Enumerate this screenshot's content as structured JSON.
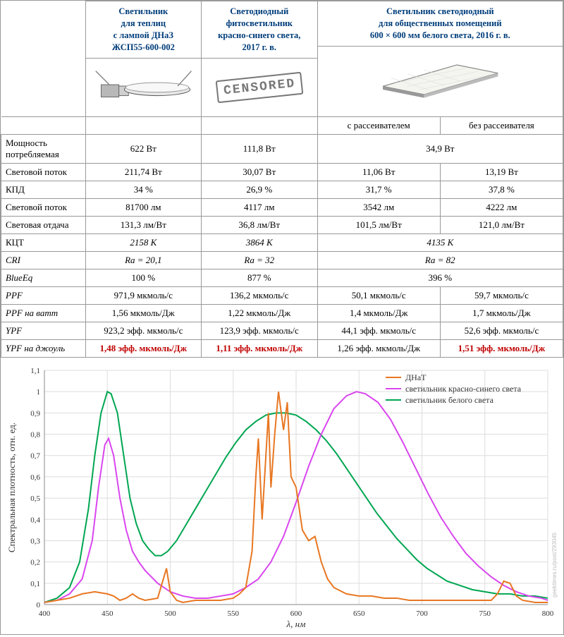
{
  "headers": {
    "col1": "Светильник\nдля теплиц\nс лампой ДНаЗ\nЖСП55-600-002",
    "col2": "Светодиодный\nфитосветильник\nкрасно-синего света,\n2017 г. в.",
    "col3": "Светильник светодиодный\nдля общественных помещений\n600 × 600 мм белого света, 2016 г. в.",
    "sub3a": "с рассеивателем",
    "sub3b": "без рассеивателя"
  },
  "censored_text": "CENSORED",
  "rows": [
    {
      "label": "Мощность потребляемая",
      "italic": false,
      "cells": [
        "622 Вт",
        "111,8 Вт",
        {
          "span": 2,
          "v": "34,9 Вт"
        }
      ]
    },
    {
      "label": "Световой поток",
      "italic": false,
      "cells": [
        "211,74 Вт",
        "30,07 Вт",
        "11,06 Вт",
        "13,19 Вт"
      ]
    },
    {
      "label": "КПД",
      "italic": false,
      "cells": [
        "34 %",
        "26,9 %",
        "31,7 %",
        "37,8 %"
      ]
    },
    {
      "label": "Световой поток",
      "italic": false,
      "cells": [
        "81700 лм",
        "4117 лм",
        "3542 лм",
        "4222 лм"
      ]
    },
    {
      "label": "Световая отдача",
      "italic": false,
      "cells": [
        "131,3 лм/Вт",
        "36,8 лм/Вт",
        "101,5 лм/Вт",
        "121,0 лм/Вт"
      ]
    },
    {
      "label": "КЦТ",
      "italic": false,
      "cells": [
        "2158 K",
        "3864 K",
        {
          "span": 2,
          "v": "4135 K"
        }
      ],
      "cell_italic": true
    },
    {
      "label": "CRI",
      "italic": true,
      "cells": [
        "Ra = 20,1",
        "Ra = 32",
        {
          "span": 2,
          "v": "Ra = 82"
        }
      ],
      "cell_italic": true
    },
    {
      "label": "BlueEq",
      "italic": true,
      "cells": [
        "100 %",
        "877 %",
        {
          "span": 2,
          "v": "396 %"
        }
      ]
    },
    {
      "label": "PPF",
      "italic": true,
      "cells": [
        "971,9 мкмоль/с",
        "136,2 мкмоль/с",
        "50,1 мкмоль/с",
        "59,7 мкмоль/с"
      ]
    },
    {
      "label": "PPF на ватт",
      "italic": true,
      "cells": [
        "1,56 мкмоль/Дж",
        "1,22 мкмоль/Дж",
        "1,4 мкмоль/Дж",
        "1,7 мкмоль/Дж"
      ]
    },
    {
      "label": "YPF",
      "italic": true,
      "cells": [
        "923,2 эфф. мкмоль/с",
        "123,9 эфф. мкмоль/с",
        "44,1 эфф. мкмоль/с",
        "52,6 эфф. мкмоль/с"
      ]
    },
    {
      "label": "YPF на джоуль",
      "italic": true,
      "cells": [
        {
          "v": "1,48 эфф. мкмоль/Дж",
          "red": true
        },
        {
          "v": "1,11 эфф. мкмоль/Дж",
          "red": true
        },
        "1,26 эфф. мкмоль/Дж",
        {
          "v": "1,51 эфф. мкмоль/Дж",
          "red": true
        }
      ]
    }
  ],
  "chart": {
    "type": "line",
    "xlim": [
      400,
      800
    ],
    "ylim": [
      0,
      1.1
    ],
    "xtick_step": 50,
    "ytick_step": 0.1,
    "xlabel": "λ, нм",
    "ylabel": "Спектральная плотность, отн. ед.",
    "background_color": "#ffffff",
    "grid_color": "#dddddd",
    "axis_color": "#888888",
    "label_fontsize": 13,
    "tick_fontsize": 11,
    "line_width": 2,
    "legend": {
      "position": "top-right",
      "items": [
        {
          "label": "ДНаТ",
          "color": "#e87722"
        },
        {
          "label": "светильник красно-синего света",
          "color": "#d946ef"
        },
        {
          "label": "светильник белого света",
          "color": "#00a651"
        }
      ]
    },
    "credit": "geektimes.ru/post/293045",
    "series": {
      "dnat": {
        "color": "#e87722",
        "points": [
          [
            400,
            0.01
          ],
          [
            410,
            0.02
          ],
          [
            420,
            0.03
          ],
          [
            430,
            0.05
          ],
          [
            440,
            0.06
          ],
          [
            450,
            0.05
          ],
          [
            455,
            0.04
          ],
          [
            460,
            0.02
          ],
          [
            465,
            0.03
          ],
          [
            470,
            0.05
          ],
          [
            475,
            0.03
          ],
          [
            480,
            0.02
          ],
          [
            490,
            0.03
          ],
          [
            497,
            0.17
          ],
          [
            500,
            0.06
          ],
          [
            505,
            0.02
          ],
          [
            510,
            0.01
          ],
          [
            520,
            0.02
          ],
          [
            530,
            0.02
          ],
          [
            540,
            0.02
          ],
          [
            550,
            0.03
          ],
          [
            555,
            0.05
          ],
          [
            560,
            0.08
          ],
          [
            565,
            0.25
          ],
          [
            568,
            0.6
          ],
          [
            570,
            0.78
          ],
          [
            573,
            0.4
          ],
          [
            576,
            0.7
          ],
          [
            578,
            0.9
          ],
          [
            580,
            0.55
          ],
          [
            583,
            0.8
          ],
          [
            586,
            1.0
          ],
          [
            590,
            0.82
          ],
          [
            593,
            0.95
          ],
          [
            596,
            0.6
          ],
          [
            600,
            0.55
          ],
          [
            605,
            0.35
          ],
          [
            610,
            0.3
          ],
          [
            615,
            0.32
          ],
          [
            620,
            0.2
          ],
          [
            625,
            0.12
          ],
          [
            630,
            0.08
          ],
          [
            640,
            0.05
          ],
          [
            650,
            0.04
          ],
          [
            660,
            0.04
          ],
          [
            670,
            0.03
          ],
          [
            680,
            0.03
          ],
          [
            690,
            0.02
          ],
          [
            700,
            0.02
          ],
          [
            720,
            0.02
          ],
          [
            740,
            0.02
          ],
          [
            755,
            0.02
          ],
          [
            760,
            0.05
          ],
          [
            765,
            0.11
          ],
          [
            770,
            0.1
          ],
          [
            775,
            0.04
          ],
          [
            780,
            0.02
          ],
          [
            790,
            0.01
          ],
          [
            800,
            0.01
          ]
        ]
      },
      "redblue": {
        "color": "#d946ef",
        "points": [
          [
            400,
            0.01
          ],
          [
            410,
            0.02
          ],
          [
            420,
            0.05
          ],
          [
            430,
            0.12
          ],
          [
            438,
            0.3
          ],
          [
            443,
            0.55
          ],
          [
            448,
            0.75
          ],
          [
            451,
            0.78
          ],
          [
            455,
            0.7
          ],
          [
            460,
            0.5
          ],
          [
            465,
            0.35
          ],
          [
            470,
            0.25
          ],
          [
            475,
            0.2
          ],
          [
            480,
            0.16
          ],
          [
            490,
            0.1
          ],
          [
            500,
            0.06
          ],
          [
            510,
            0.04
          ],
          [
            520,
            0.03
          ],
          [
            530,
            0.03
          ],
          [
            540,
            0.04
          ],
          [
            550,
            0.05
          ],
          [
            560,
            0.08
          ],
          [
            570,
            0.12
          ],
          [
            580,
            0.2
          ],
          [
            590,
            0.32
          ],
          [
            600,
            0.48
          ],
          [
            610,
            0.65
          ],
          [
            620,
            0.8
          ],
          [
            630,
            0.92
          ],
          [
            640,
            0.98
          ],
          [
            648,
            1.0
          ],
          [
            655,
            0.99
          ],
          [
            665,
            0.95
          ],
          [
            675,
            0.87
          ],
          [
            685,
            0.76
          ],
          [
            695,
            0.64
          ],
          [
            705,
            0.52
          ],
          [
            715,
            0.41
          ],
          [
            725,
            0.32
          ],
          [
            735,
            0.24
          ],
          [
            745,
            0.18
          ],
          [
            755,
            0.13
          ],
          [
            765,
            0.09
          ],
          [
            775,
            0.06
          ],
          [
            785,
            0.04
          ],
          [
            795,
            0.03
          ],
          [
            800,
            0.02
          ]
        ]
      },
      "white": {
        "color": "#00a651",
        "points": [
          [
            400,
            0.01
          ],
          [
            410,
            0.03
          ],
          [
            420,
            0.08
          ],
          [
            428,
            0.2
          ],
          [
            435,
            0.45
          ],
          [
            440,
            0.7
          ],
          [
            445,
            0.9
          ],
          [
            450,
            1.0
          ],
          [
            453,
            0.99
          ],
          [
            458,
            0.9
          ],
          [
            463,
            0.7
          ],
          [
            468,
            0.5
          ],
          [
            473,
            0.38
          ],
          [
            478,
            0.3
          ],
          [
            483,
            0.26
          ],
          [
            488,
            0.23
          ],
          [
            493,
            0.23
          ],
          [
            498,
            0.25
          ],
          [
            505,
            0.3
          ],
          [
            512,
            0.37
          ],
          [
            520,
            0.45
          ],
          [
            528,
            0.53
          ],
          [
            536,
            0.61
          ],
          [
            544,
            0.69
          ],
          [
            552,
            0.76
          ],
          [
            560,
            0.82
          ],
          [
            568,
            0.86
          ],
          [
            576,
            0.89
          ],
          [
            584,
            0.9
          ],
          [
            592,
            0.9
          ],
          [
            600,
            0.89
          ],
          [
            608,
            0.86
          ],
          [
            616,
            0.82
          ],
          [
            624,
            0.77
          ],
          [
            632,
            0.71
          ],
          [
            640,
            0.64
          ],
          [
            648,
            0.57
          ],
          [
            656,
            0.5
          ],
          [
            664,
            0.43
          ],
          [
            672,
            0.37
          ],
          [
            680,
            0.31
          ],
          [
            688,
            0.26
          ],
          [
            696,
            0.21
          ],
          [
            704,
            0.17
          ],
          [
            712,
            0.14
          ],
          [
            720,
            0.11
          ],
          [
            730,
            0.09
          ],
          [
            740,
            0.07
          ],
          [
            750,
            0.06
          ],
          [
            760,
            0.05
          ],
          [
            770,
            0.05
          ],
          [
            780,
            0.04
          ],
          [
            790,
            0.04
          ],
          [
            800,
            0.03
          ]
        ]
      }
    }
  }
}
